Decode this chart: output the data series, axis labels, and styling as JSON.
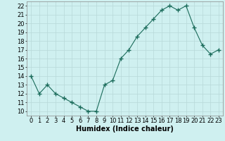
{
  "x": [
    0,
    1,
    2,
    3,
    4,
    5,
    6,
    7,
    8,
    9,
    10,
    11,
    12,
    13,
    14,
    15,
    16,
    17,
    18,
    19,
    20,
    21,
    22,
    23
  ],
  "y": [
    14.0,
    12.0,
    13.0,
    12.0,
    11.5,
    11.0,
    10.5,
    10.0,
    10.0,
    13.0,
    13.5,
    16.0,
    17.0,
    18.5,
    19.5,
    20.5,
    21.5,
    22.0,
    21.5,
    22.0,
    19.5,
    17.5,
    16.5,
    17.0
  ],
  "line_color": "#1a6b5a",
  "marker": "+",
  "marker_size": 4,
  "bg_color": "#cff0f0",
  "grid_color": "#b8d8d8",
  "xlabel": "Humidex (Indice chaleur)",
  "xlim": [
    -0.5,
    23.5
  ],
  "ylim": [
    9.5,
    22.5
  ],
  "yticks": [
    10,
    11,
    12,
    13,
    14,
    15,
    16,
    17,
    18,
    19,
    20,
    21,
    22
  ],
  "xticks": [
    0,
    1,
    2,
    3,
    4,
    5,
    6,
    7,
    8,
    9,
    10,
    11,
    12,
    13,
    14,
    15,
    16,
    17,
    18,
    19,
    20,
    21,
    22,
    23
  ],
  "xlabel_fontsize": 7,
  "tick_fontsize": 6,
  "linewidth": 0.8
}
